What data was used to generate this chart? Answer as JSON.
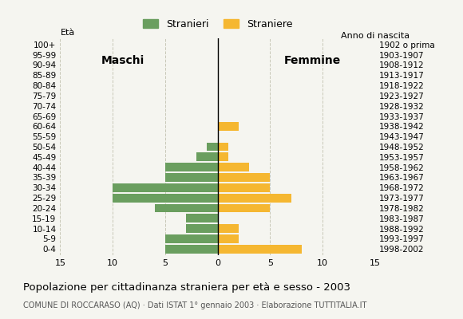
{
  "age_groups": [
    "0-4",
    "5-9",
    "10-14",
    "15-19",
    "20-24",
    "25-29",
    "30-34",
    "35-39",
    "40-44",
    "45-49",
    "50-54",
    "55-59",
    "60-64",
    "65-69",
    "70-74",
    "75-79",
    "80-84",
    "85-89",
    "90-94",
    "95-99",
    "100+"
  ],
  "birth_years": [
    "1998-2002",
    "1993-1997",
    "1988-1992",
    "1983-1987",
    "1978-1982",
    "1973-1977",
    "1968-1972",
    "1963-1967",
    "1958-1962",
    "1953-1957",
    "1948-1952",
    "1943-1947",
    "1938-1942",
    "1933-1937",
    "1928-1932",
    "1923-1927",
    "1918-1922",
    "1913-1917",
    "1908-1912",
    "1903-1907",
    "1902 o prima"
  ],
  "males": [
    5,
    5,
    3,
    3,
    6,
    10,
    10,
    5,
    5,
    2,
    1,
    0,
    0,
    0,
    0,
    0,
    0,
    0,
    0,
    0,
    0
  ],
  "females": [
    8,
    2,
    2,
    0,
    5,
    7,
    5,
    5,
    3,
    1,
    1,
    0,
    2,
    0,
    0,
    0,
    0,
    0,
    0,
    0,
    0
  ],
  "male_color": "#6a9e5f",
  "female_color": "#f5b731",
  "bar_height": 0.85,
  "xlim": 15,
  "title": "Popolazione per cittadinanza straniera per età e sesso - 2003",
  "subtitle": "COMUNE DI ROCCARASO (AQ) · Dati ISTAT 1° gennaio 2003 · Elaborazione TUTTITALIA.IT",
  "legend_stranieri": "Stranieri",
  "legend_straniere": "Straniere",
  "label_eta": "Età",
  "label_anno": "Anno di nascita",
  "label_maschi": "Maschi",
  "label_femmine": "Femmine",
  "bg_color": "#f5f5f0",
  "grid_color": "#c8c8b8"
}
